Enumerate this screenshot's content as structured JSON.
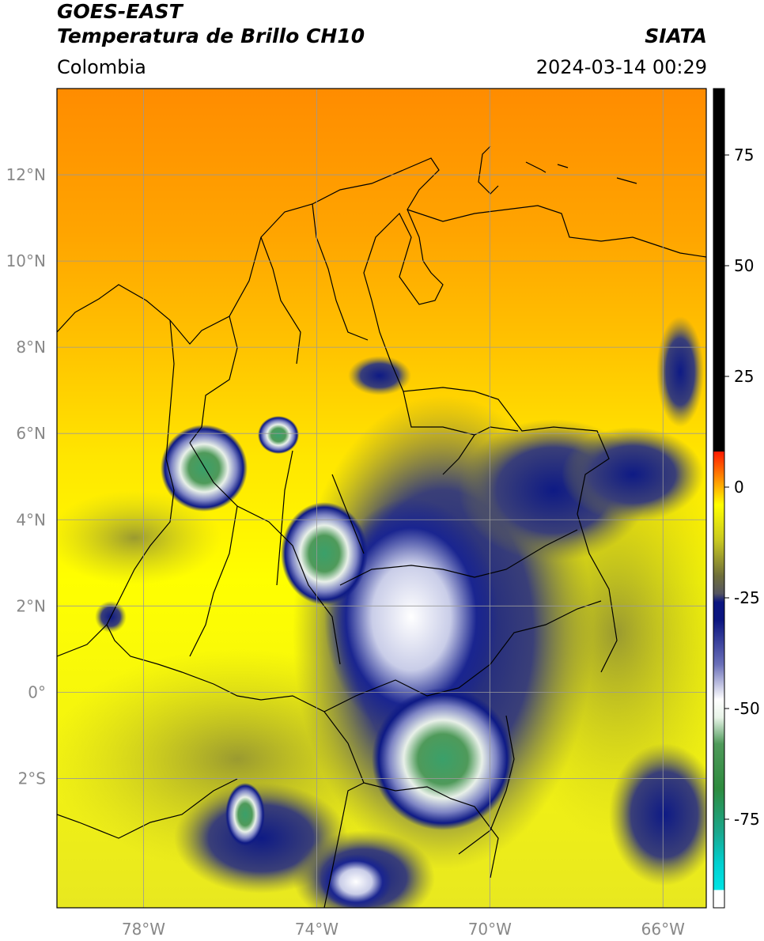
{
  "header": {
    "satellite": "GOES-EAST",
    "product": "Temperatura de Brillo CH10",
    "region": "Colombia",
    "agency": "SIATA",
    "datetime": "2024-03-14 00:29"
  },
  "map": {
    "lon_range": [
      -80,
      -65
    ],
    "lat_range": [
      -5,
      14
    ],
    "lat_ticks": [
      {
        "value": 12,
        "label": "12°N"
      },
      {
        "value": 10,
        "label": "10°N"
      },
      {
        "value": 8,
        "label": "8°N"
      },
      {
        "value": 6,
        "label": "6°N"
      },
      {
        "value": 4,
        "label": "4°N"
      },
      {
        "value": 2,
        "label": "2°N"
      },
      {
        "value": 0,
        "label": "0°"
      },
      {
        "value": -2,
        "label": "2°S"
      }
    ],
    "lon_ticks": [
      {
        "value": -78,
        "label": "78°W"
      },
      {
        "value": -74,
        "label": "74°W"
      },
      {
        "value": -70,
        "label": "70°W"
      },
      {
        "value": -66,
        "label": "66°W"
      }
    ],
    "grid": true
  },
  "colorbar": {
    "range": [
      -95,
      90
    ],
    "ticks": [
      {
        "value": 75,
        "label": "75"
      },
      {
        "value": 50,
        "label": "50"
      },
      {
        "value": 25,
        "label": "25"
      },
      {
        "value": 0,
        "label": "0"
      },
      {
        "value": -25,
        "label": "-25"
      },
      {
        "value": -50,
        "label": "-50"
      },
      {
        "value": -75,
        "label": "-75"
      }
    ],
    "colors": [
      "#ffffff",
      "#00e5e5",
      "#1aa88e",
      "#2e8b3e",
      "#e8f4e8",
      "#ffffff",
      "#6a6fb8",
      "#0b1580",
      "#6f6f3a",
      "#c8c820",
      "#ffff00",
      "#ff8c00",
      "#ff1a00",
      "#000000"
    ]
  }
}
